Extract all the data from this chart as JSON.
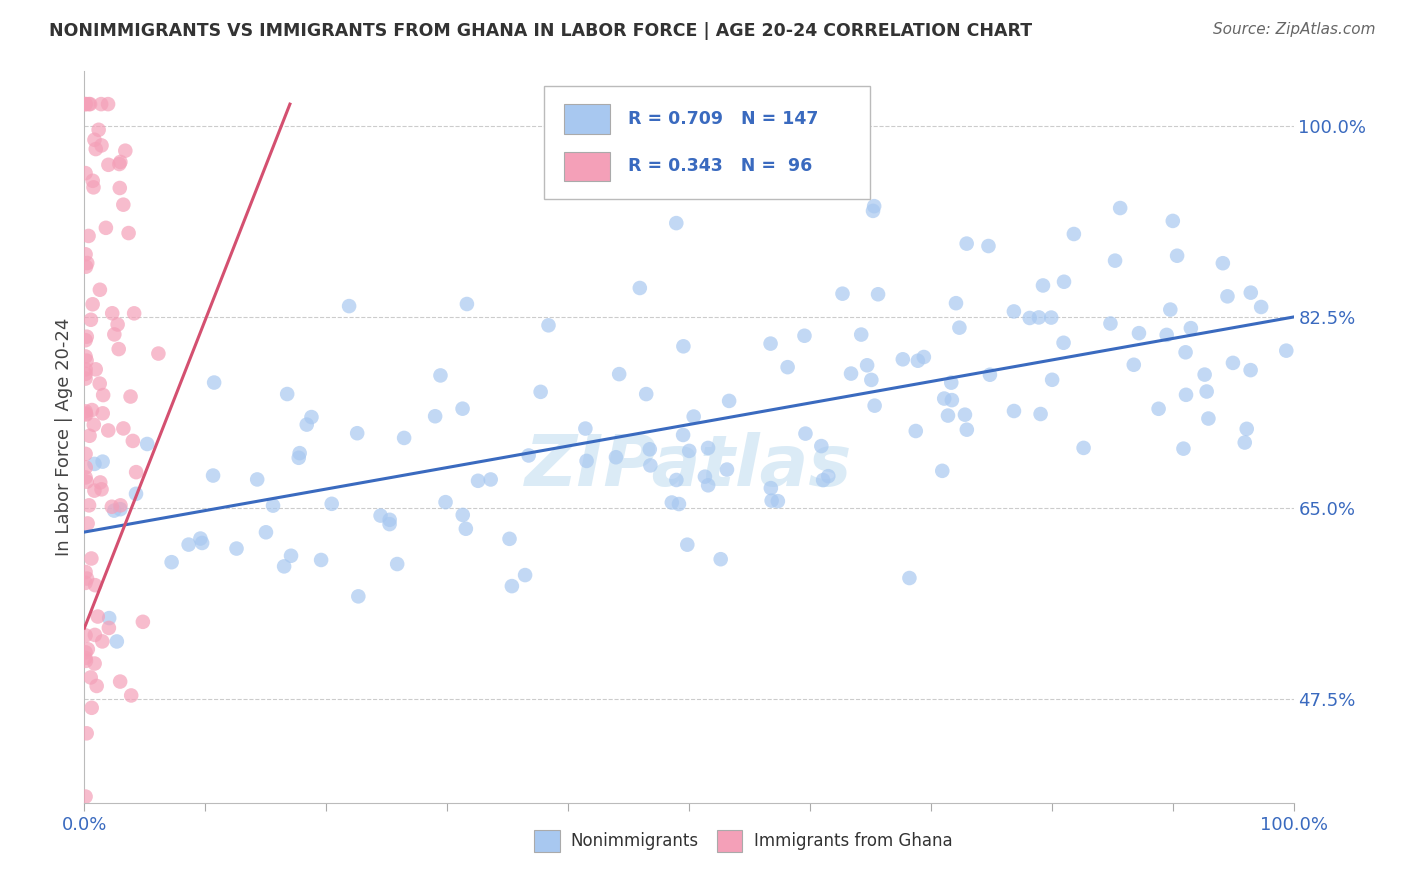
{
  "title": "NONIMMIGRANTS VS IMMIGRANTS FROM GHANA IN LABOR FORCE | AGE 20-24 CORRELATION CHART",
  "source": "Source: ZipAtlas.com",
  "ylabel": "In Labor Force | Age 20-24",
  "ytick_labels": [
    "47.5%",
    "65.0%",
    "82.5%",
    "100.0%"
  ],
  "ytick_values": [
    0.475,
    0.65,
    0.825,
    1.0
  ],
  "legend_label_1": "Nonimmigrants",
  "legend_label_2": "Immigrants from Ghana",
  "R1": 0.709,
  "N1": 147,
  "R2": 0.343,
  "N2": 96,
  "color_blue": "#a8c8f0",
  "color_pink": "#f4a0b8",
  "color_blue_line": "#3a6abf",
  "color_pink_line": "#d45070",
  "color_blue_text": "#3a6abf",
  "color_title": "#333333",
  "color_source": "#666666",
  "color_ylabel": "#444444",
  "color_grid": "#cccccc",
  "watermark_color": "#d5e8f5",
  "xlim": [
    0.0,
    1.0
  ],
  "ylim": [
    0.38,
    1.05
  ],
  "blue_line_x0": 0.0,
  "blue_line_y0": 0.628,
  "blue_line_x1": 1.0,
  "blue_line_y1": 0.825,
  "pink_line_x0": 0.0,
  "pink_line_y0": 0.54,
  "pink_line_x1": 0.17,
  "pink_line_y1": 1.02
}
